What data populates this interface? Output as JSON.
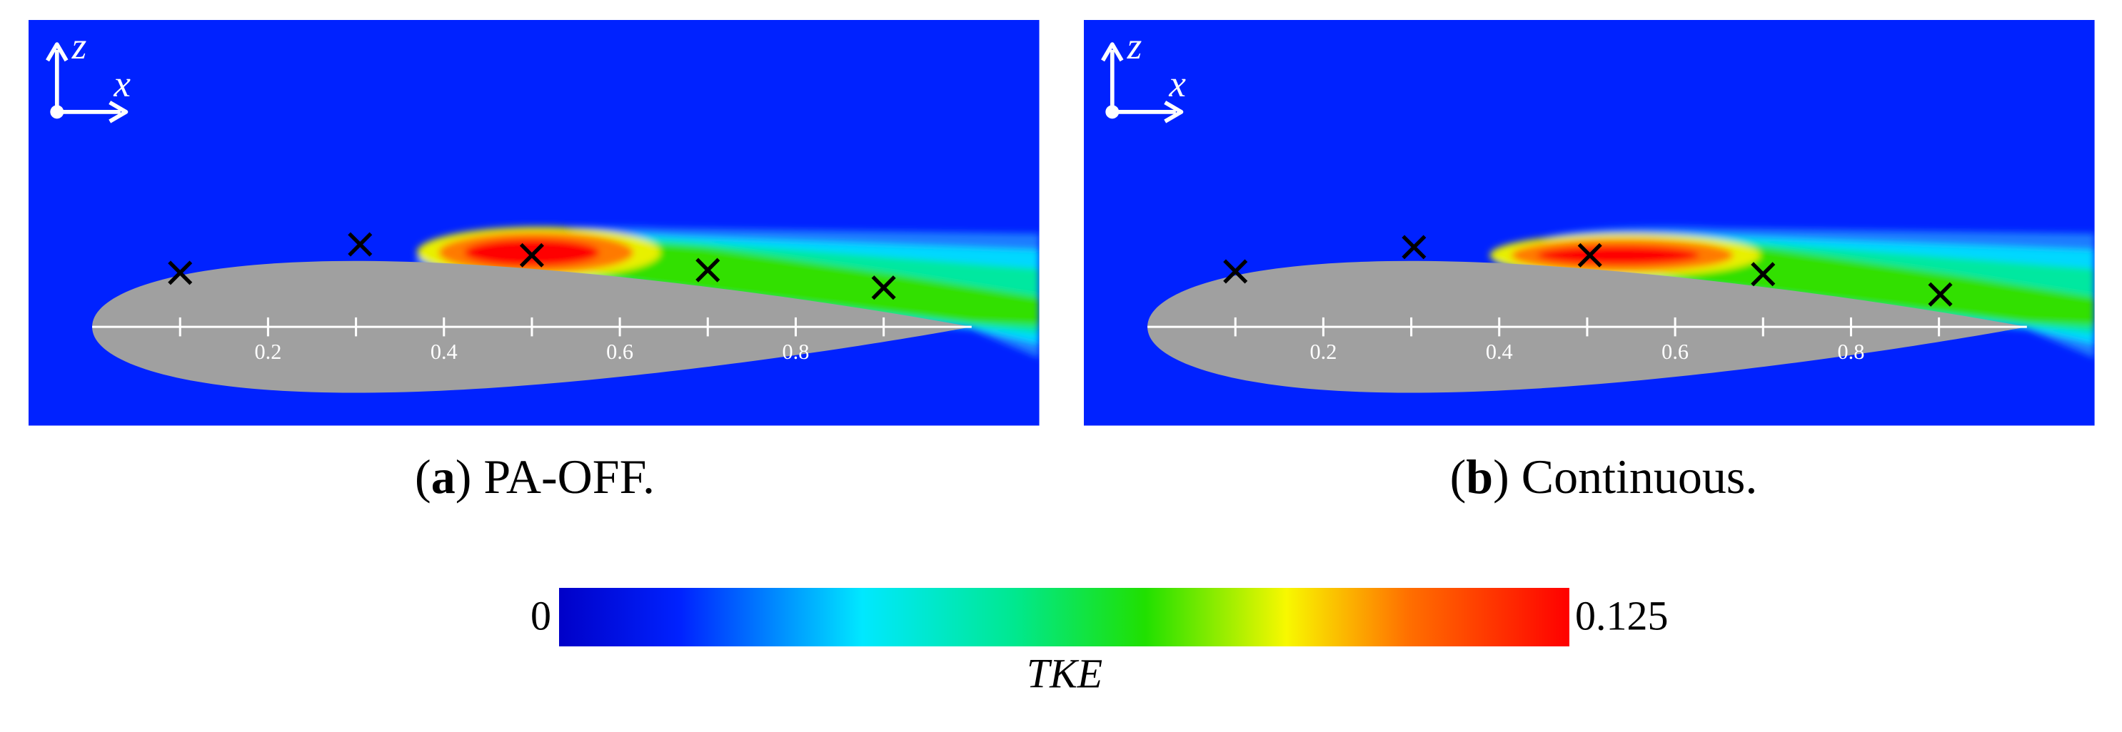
{
  "panels": [
    {
      "caption": [
        "(",
        "a",
        ") PA-OFF."
      ],
      "axis_labels": {
        "z": "z",
        "x": "x"
      },
      "tick_labels": [
        "0.2",
        "0.4",
        "0.6",
        "0.8"
      ]
    },
    {
      "caption": [
        "(",
        "b",
        ") Continuous."
      ],
      "axis_labels": {
        "z": "z",
        "x": "x"
      },
      "tick_labels": [
        "0.2",
        "0.4",
        "0.6",
        "0.8"
      ]
    }
  ],
  "colorbar": {
    "min_label": "0",
    "max_label": "0.125",
    "title": "TKE"
  }
}
